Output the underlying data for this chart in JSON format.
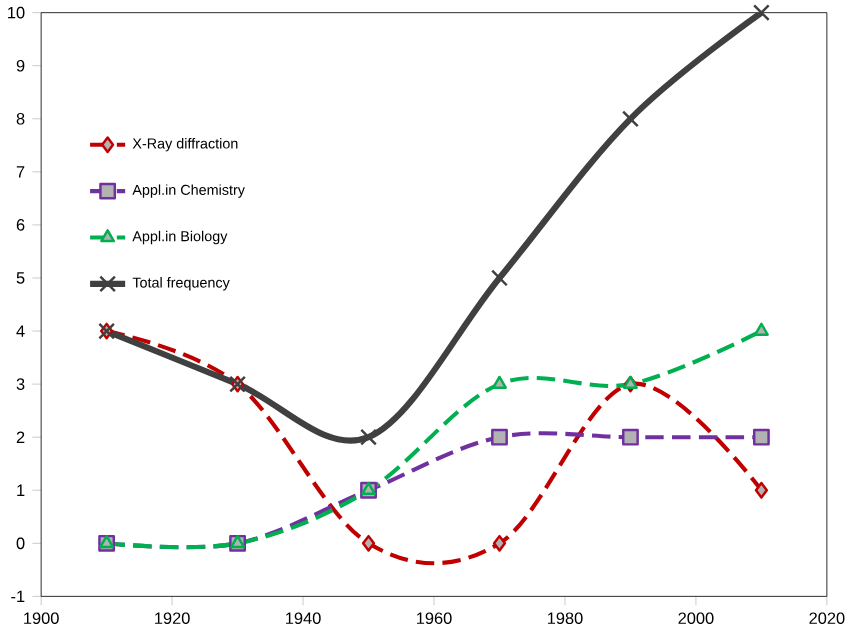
{
  "chart_data": {
    "type": "line",
    "x": [
      1910,
      1930,
      1950,
      1970,
      1990,
      2010
    ],
    "series": [
      {
        "name": "X-Ray diffraction",
        "color": "#c00000",
        "values": [
          4,
          3,
          0,
          0,
          3,
          1
        ],
        "marker": "diamond",
        "line_style": "dashed"
      },
      {
        "name": "Appl.in Chemistry",
        "color": "#7030a0",
        "values": [
          0,
          0,
          1,
          2,
          2,
          2
        ],
        "marker": "square",
        "line_style": "dashed"
      },
      {
        "name": "Appl.in Biology",
        "color": "#00b050",
        "values": [
          0,
          0,
          1,
          3,
          3,
          4
        ],
        "marker": "triangle",
        "line_style": "dashed"
      },
      {
        "name": "Total frequency",
        "color": "#404040",
        "values": [
          4,
          3,
          2,
          5,
          8,
          10
        ],
        "marker": "cross",
        "line_style": "solid"
      }
    ],
    "xlim": [
      1900,
      2020
    ],
    "xticks": [
      1900,
      1920,
      1940,
      1960,
      1980,
      2000,
      2020
    ],
    "ylim": [
      -1,
      10
    ],
    "yticks": [
      -1,
      0,
      1,
      2,
      3,
      4,
      5,
      6,
      7,
      8,
      9,
      10
    ],
    "legend": "top left",
    "grid": false
  }
}
